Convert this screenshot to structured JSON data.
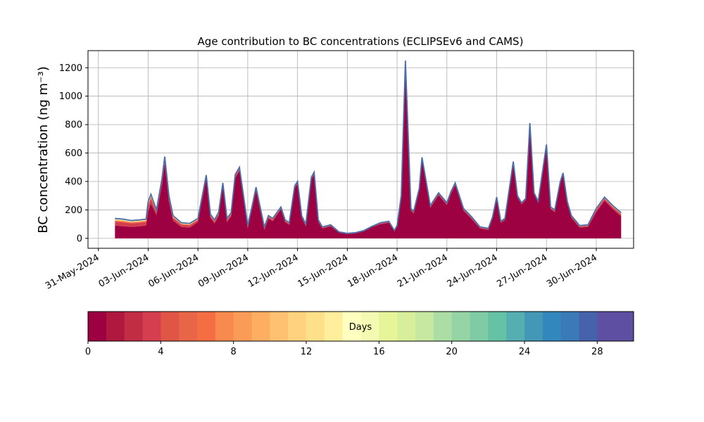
{
  "chart_data": {
    "type": "area",
    "title": "Age contribution to BC concentrations (ECLIPSEv6 and CAMS)",
    "ylabel": "BC concentration (ng m⁻³)",
    "xlabel": "",
    "ylim": [
      -70,
      1320
    ],
    "yticks": [
      0,
      200,
      400,
      600,
      800,
      1000,
      1200
    ],
    "xlim": [
      "2024-05-30T09:00",
      "2024-07-02T06:00"
    ],
    "xticks": [
      "31-May-2024",
      "03-Jun-2024",
      "06-Jun-2024",
      "09-Jun-2024",
      "12-Jun-2024",
      "15-Jun-2024",
      "18-Jun-2024",
      "21-Jun-2024",
      "24-Jun-2024",
      "27-Jun-2024",
      "30-Jun-2024"
    ],
    "x_tick_dates": [
      "2024-05-31",
      "2024-06-03",
      "2024-06-06",
      "2024-06-09",
      "2024-06-12",
      "2024-06-15",
      "2024-06-18",
      "2024-06-21",
      "2024-06-24",
      "2024-06-27",
      "2024-06-30"
    ],
    "grid": true,
    "colors": {
      "total_line": "#4a6fa8",
      "stack": [
        "#9e0142",
        "#d53e4f",
        "#f46d43",
        "#fdae61",
        "#fee08b",
        "#e6f598",
        "#abdda4",
        "#66c2a5",
        "#3288bd",
        "#5e4fa2"
      ]
    },
    "series_total": {
      "dates": [
        "2024-06-01T00:00",
        "2024-06-01T12:00",
        "2024-06-02T00:00",
        "2024-06-02T12:00",
        "2024-06-02T21:00",
        "2024-06-03T00:00",
        "2024-06-03T04:00",
        "2024-06-03T12:00",
        "2024-06-03T20:00",
        "2024-06-04T00:00",
        "2024-06-04T06:00",
        "2024-06-04T12:00",
        "2024-06-05T00:00",
        "2024-06-05T12:00",
        "2024-06-06T00:00",
        "2024-06-06T12:00",
        "2024-06-06T18:00",
        "2024-06-07T00:00",
        "2024-06-07T06:00",
        "2024-06-07T12:00",
        "2024-06-07T18:00",
        "2024-06-08T00:00",
        "2024-06-08T06:00",
        "2024-06-08T12:00",
        "2024-06-09T00:00",
        "2024-06-09T06:00",
        "2024-06-09T12:00",
        "2024-06-10T00:00",
        "2024-06-10T06:00",
        "2024-06-10T12:00",
        "2024-06-11T00:00",
        "2024-06-11T06:00",
        "2024-06-11T12:00",
        "2024-06-11T20:00",
        "2024-06-12T00:00",
        "2024-06-12T06:00",
        "2024-06-12T12:00",
        "2024-06-12T20:00",
        "2024-06-13T00:00",
        "2024-06-13T06:00",
        "2024-06-13T12:00",
        "2024-06-14T00:00",
        "2024-06-14T12:00",
        "2024-06-15T00:00",
        "2024-06-15T12:00",
        "2024-06-16T00:00",
        "2024-06-16T12:00",
        "2024-06-17T00:00",
        "2024-06-17T12:00",
        "2024-06-17T20:00",
        "2024-06-18T00:00",
        "2024-06-18T06:00",
        "2024-06-18T12:00",
        "2024-06-18T20:00",
        "2024-06-19T00:00",
        "2024-06-19T08:00",
        "2024-06-19T12:00",
        "2024-06-20T00:00",
        "2024-06-20T12:00",
        "2024-06-21T00:00",
        "2024-06-21T06:00",
        "2024-06-21T12:00",
        "2024-06-22T00:00",
        "2024-06-22T12:00",
        "2024-06-23T00:00",
        "2024-06-23T12:00",
        "2024-06-23T18:00",
        "2024-06-24T00:00",
        "2024-06-24T06:00",
        "2024-06-24T12:00",
        "2024-06-25T00:00",
        "2024-06-25T06:00",
        "2024-06-25T12:00",
        "2024-06-25T18:00",
        "2024-06-26T00:00",
        "2024-06-26T06:00",
        "2024-06-26T12:00",
        "2024-06-27T00:00",
        "2024-06-27T06:00",
        "2024-06-27T12:00",
        "2024-06-27T20:00",
        "2024-06-28T00:00",
        "2024-06-28T06:00",
        "2024-06-28T12:00",
        "2024-06-29T00:00",
        "2024-06-29T12:00",
        "2024-06-30T00:00",
        "2024-06-30T12:00",
        "2024-07-01T00:00",
        "2024-07-01T12:00"
      ],
      "values": [
        140,
        135,
        125,
        130,
        135,
        260,
        310,
        200,
        420,
        575,
        300,
        160,
        110,
        105,
        140,
        445,
        170,
        130,
        185,
        390,
        140,
        180,
        450,
        500,
        90,
        220,
        360,
        80,
        160,
        140,
        220,
        130,
        110,
        370,
        400,
        160,
        100,
        430,
        465,
        130,
        80,
        95,
        45,
        35,
        40,
        55,
        85,
        110,
        120,
        55,
        90,
        300,
        1250,
        210,
        190,
        350,
        570,
        230,
        320,
        250,
        330,
        390,
        210,
        150,
        80,
        70,
        150,
        290,
        120,
        140,
        540,
        300,
        250,
        280,
        810,
        320,
        260,
        660,
        220,
        200,
        400,
        460,
        260,
        160,
        90,
        95,
        210,
        290,
        230,
        180
      ]
    },
    "series_old_band": {
      "name": "",
      "values": [
        50,
        50,
        45,
        45,
        45,
        70,
        65,
        35,
        40,
        45,
        40,
        35,
        30,
        30,
        25,
        25,
        25,
        25,
        25,
        25,
        25,
        25,
        25,
        25,
        20,
        20,
        25,
        20,
        20,
        20,
        15,
        15,
        15,
        15,
        15,
        15,
        15,
        15,
        15,
        15,
        10,
        10,
        5,
        5,
        5,
        5,
        5,
        10,
        10,
        5,
        5,
        10,
        10,
        15,
        15,
        15,
        15,
        15,
        15,
        15,
        15,
        15,
        15,
        15,
        10,
        10,
        10,
        10,
        10,
        10,
        10,
        10,
        10,
        10,
        10,
        10,
        10,
        15,
        15,
        15,
        15,
        15,
        15,
        15,
        15,
        15,
        25,
        25,
        25,
        25
      ]
    },
    "colorbar": {
      "label": "Days",
      "min": 0,
      "max": 30,
      "ticks": [
        0,
        4,
        8,
        12,
        16,
        20,
        24,
        28
      ],
      "colors": [
        "#9e0142",
        "#b0183f",
        "#c12d45",
        "#d53e4f",
        "#e05545",
        "#e86548",
        "#f46d43",
        "#f88a50",
        "#fa9c58",
        "#fdae61",
        "#fdc171",
        "#fed27f",
        "#fee08b",
        "#ffee9c",
        "#ffffbf",
        "#f4fab2",
        "#e6f598",
        "#d7ef9b",
        "#c7e8a0",
        "#abdda4",
        "#95d4a5",
        "#7ecba5",
        "#66c2a5",
        "#55aeaf",
        "#4398b7",
        "#3288bd",
        "#3a7ab8",
        "#4762ac",
        "#5e4fa2",
        "#5e4fa2"
      ]
    }
  }
}
